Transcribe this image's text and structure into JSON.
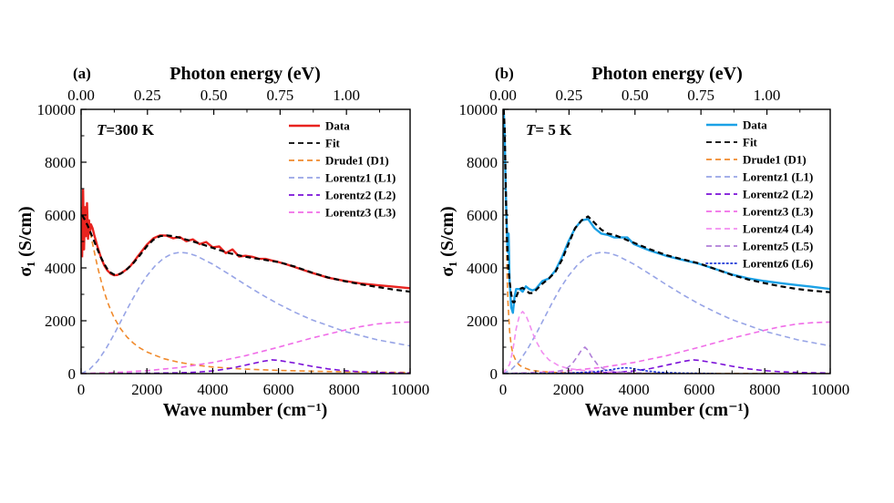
{
  "chart_data": [
    {
      "type": "line",
      "panel_label": "(a)",
      "annotation_italic": "T",
      "annotation_rest": "=300 K",
      "xlabel": "Wave number (cm⁻¹)",
      "top_xlabel": "Photon energy (eV)",
      "ylabel": "σ₁ (S/cm)",
      "xlim": [
        0,
        10000
      ],
      "ylim": [
        0,
        10000
      ],
      "x_ticks": [
        "0",
        "2000",
        "4000",
        "6000",
        "8000",
        "10000"
      ],
      "y_ticks": [
        "0",
        "2000",
        "4000",
        "6000",
        "8000",
        "10000"
      ],
      "top_ticks": [
        {
          "value": 0.0,
          "label": "0.00"
        },
        {
          "value": 0.25,
          "label": "0.25"
        },
        {
          "value": 0.5,
          "label": "0.50"
        },
        {
          "value": 0.75,
          "label": "0.75"
        },
        {
          "value": 1.0,
          "label": "1.00"
        }
      ],
      "legend_position": "top-right",
      "series": [
        {
          "name": "Data",
          "color": "#e8231f",
          "style": "solid",
          "x": [
            30,
            60,
            90,
            120,
            150,
            180,
            210,
            240,
            270,
            300,
            350,
            400,
            500,
            600,
            700,
            800,
            900,
            1000,
            1100,
            1200,
            1300,
            1400,
            1500,
            1600,
            1700,
            1800,
            2000,
            2200,
            2400,
            2600,
            2800,
            3000,
            3200,
            3400,
            3600,
            3800,
            4000,
            4200,
            4400,
            4600,
            4800,
            5000,
            5200,
            5400,
            5600,
            5800,
            6000,
            6200,
            6500,
            7000,
            7500,
            8000,
            8500,
            9000,
            9500,
            10000
          ],
          "y": [
            4400,
            6950,
            4700,
            6300,
            5200,
            6450,
            5100,
            5800,
            5300,
            5650,
            5500,
            5250,
            4800,
            4400,
            4100,
            3900,
            3780,
            3720,
            3730,
            3790,
            3870,
            3960,
            4080,
            4230,
            4400,
            4560,
            4880,
            5120,
            5230,
            5220,
            5120,
            5170,
            5010,
            5080,
            4900,
            4980,
            4780,
            4810,
            4560,
            4700,
            4430,
            4460,
            4420,
            4350,
            4340,
            4280,
            4220,
            4150,
            4030,
            3820,
            3630,
            3510,
            3410,
            3350,
            3290,
            3230
          ]
        },
        {
          "name": "Fit",
          "color": "#000000",
          "style": "dash",
          "x": [
            30,
            100,
            200,
            300,
            400,
            500,
            600,
            700,
            800,
            900,
            1000,
            1100,
            1200,
            1300,
            1400,
            1600,
            1800,
            2000,
            2200,
            2400,
            2600,
            2800,
            3000,
            3200,
            3400,
            3600,
            3800,
            4000,
            4500,
            5000,
            5500,
            6000,
            6500,
            7000,
            7500,
            8000,
            8500,
            9000,
            9500,
            10000
          ],
          "y": [
            6000,
            5850,
            5600,
            5300,
            5000,
            4700,
            4400,
            4150,
            3950,
            3820,
            3750,
            3740,
            3780,
            3860,
            3960,
            4200,
            4500,
            4820,
            5070,
            5200,
            5230,
            5200,
            5140,
            5070,
            5000,
            4920,
            4840,
            4760,
            4560,
            4420,
            4320,
            4220,
            4050,
            3830,
            3640,
            3500,
            3380,
            3280,
            3180,
            3100
          ]
        },
        {
          "name": "Drude1 (D1)",
          "color": "#f08a2c",
          "style": "dash",
          "x": [
            0,
            100,
            200,
            300,
            400,
            500,
            600,
            700,
            800,
            900,
            1000,
            1200,
            1400,
            1600,
            1800,
            2000,
            2500,
            3000,
            3500,
            4000,
            5000,
            6000,
            7000,
            8000,
            9000,
            10000
          ],
          "y": [
            6300,
            6150,
            5750,
            5200,
            4620,
            4050,
            3540,
            3100,
            2720,
            2400,
            2120,
            1700,
            1380,
            1140,
            960,
            820,
            570,
            420,
            320,
            250,
            170,
            120,
            90,
            70,
            55,
            45
          ]
        },
        {
          "name": "Lorentz1 (L1)",
          "color": "#97a4e6",
          "style": "dash",
          "x": [
            0,
            250,
            500,
            750,
            1000,
            1250,
            1500,
            1750,
            2000,
            2250,
            2500,
            2750,
            3000,
            3250,
            3500,
            4000,
            4500,
            5000,
            5500,
            6000,
            6500,
            7000,
            8000,
            9000,
            10000
          ],
          "y": [
            0,
            150,
            470,
            930,
            1480,
            2080,
            2680,
            3230,
            3700,
            4080,
            4360,
            4530,
            4590,
            4560,
            4460,
            4140,
            3760,
            3360,
            2980,
            2630,
            2320,
            2040,
            1600,
            1280,
            1050
          ]
        },
        {
          "name": "Lorentz2 (L2)",
          "color": "#7b10d8",
          "style": "dash",
          "x": [
            0,
            1000,
            2000,
            3000,
            3500,
            4000,
            4500,
            5000,
            5500,
            5800,
            6000,
            6500,
            7000,
            7500,
            8000,
            8500,
            9000,
            9500,
            10000
          ],
          "y": [
            0,
            5,
            15,
            30,
            55,
            100,
            190,
            320,
            460,
            520,
            500,
            400,
            280,
            180,
            110,
            70,
            45,
            30,
            20
          ]
        },
        {
          "name": "Lorentz3 (L3)",
          "color": "#f06de8",
          "style": "dash",
          "x": [
            0,
            1000,
            2000,
            3000,
            4000,
            5000,
            6000,
            7000,
            8000,
            8500,
            9000,
            9500,
            10000
          ],
          "y": [
            0,
            40,
            110,
            230,
            420,
            680,
            1000,
            1340,
            1640,
            1780,
            1880,
            1930,
            1950
          ]
        }
      ]
    },
    {
      "type": "line",
      "panel_label": "(b)",
      "annotation_italic": "T",
      "annotation_rest": "=  5 K",
      "xlabel": "Wave number (cm⁻¹)",
      "top_xlabel": "Photon energy (eV)",
      "ylabel": "σ₁ (S/cm)",
      "xlim": [
        0,
        10000
      ],
      "ylim": [
        0,
        10000
      ],
      "x_ticks": [
        "0",
        "2000",
        "4000",
        "6000",
        "8000",
        "10000"
      ],
      "y_ticks": [
        "0",
        "2000",
        "4000",
        "6000",
        "8000",
        "10000"
      ],
      "top_ticks": [
        {
          "value": 0.0,
          "label": "0.00"
        },
        {
          "value": 0.25,
          "label": "0.25"
        },
        {
          "value": 0.5,
          "label": "0.50"
        },
        {
          "value": 0.75,
          "label": "0.75"
        },
        {
          "value": 1.0,
          "label": "1.00"
        }
      ],
      "legend_position": "top-right",
      "series": [
        {
          "name": "Data",
          "color": "#1ba1e6",
          "style": "solid",
          "x": [
            20,
            50,
            80,
            110,
            140,
            170,
            200,
            250,
            300,
            350,
            400,
            500,
            600,
            700,
            800,
            900,
            1000,
            1200,
            1400,
            1600,
            1800,
            2000,
            2200,
            2400,
            2600,
            2800,
            3000,
            3200,
            3400,
            3600,
            3800,
            4000,
            4500,
            5000,
            5500,
            6000,
            6500,
            7000,
            7500,
            8000,
            8500,
            9000,
            9500,
            10000
          ],
          "y": [
            10000,
            9000,
            7000,
            5800,
            4600,
            5300,
            3500,
            2500,
            2300,
            2900,
            3200,
            3200,
            3100,
            3300,
            3200,
            3150,
            3200,
            3500,
            3600,
            3900,
            4400,
            5000,
            5500,
            5800,
            5850,
            5500,
            5300,
            5250,
            5150,
            5150,
            5150,
            4900,
            4650,
            4450,
            4300,
            4150,
            3950,
            3750,
            3600,
            3500,
            3420,
            3350,
            3280,
            3200
          ]
        },
        {
          "name": "Fit",
          "color": "#000000",
          "style": "dash",
          "x": [
            20,
            50,
            80,
            110,
            140,
            170,
            200,
            250,
            300,
            350,
            400,
            500,
            600,
            700,
            800,
            900,
            1000,
            1200,
            1400,
            1600,
            1800,
            2000,
            2200,
            2400,
            2600,
            2800,
            3000,
            3200,
            3400,
            3600,
            3800,
            4000,
            4500,
            5000,
            5500,
            6000,
            6500,
            7000,
            7500,
            8000,
            8500,
            9000,
            9500,
            10000
          ],
          "y": [
            10000,
            9300,
            7300,
            5600,
            4500,
            3900,
            3500,
            3000,
            2700,
            2700,
            2900,
            3200,
            3250,
            3150,
            3050,
            3050,
            3150,
            3400,
            3600,
            3850,
            4300,
            4900,
            5500,
            5800,
            5950,
            5700,
            5450,
            5300,
            5250,
            5150,
            5050,
            4950,
            4700,
            4480,
            4320,
            4170,
            3950,
            3730,
            3560,
            3420,
            3300,
            3200,
            3130,
            3080
          ]
        },
        {
          "name": "Drude1 (D1)",
          "color": "#f08a2c",
          "style": "dash",
          "x": [
            0,
            25,
            50,
            75,
            100,
            125,
            150,
            200,
            250,
            300,
            400,
            500,
            600,
            800,
            1000,
            1500,
            2000,
            3000,
            5000,
            10000
          ],
          "y": [
            10000,
            9700,
            8600,
            6800,
            5000,
            3700,
            2700,
            1600,
            1050,
            750,
            460,
            320,
            240,
            150,
            100,
            50,
            30,
            15,
            5,
            0
          ]
        },
        {
          "name": "Lorentz1 (L1)",
          "color": "#97a4e6",
          "style": "dash",
          "x": [
            0,
            250,
            500,
            750,
            1000,
            1250,
            1500,
            1750,
            2000,
            2250,
            2500,
            2750,
            3000,
            3250,
            3500,
            4000,
            4500,
            5000,
            5500,
            6000,
            6500,
            7000,
            8000,
            9000,
            10000
          ],
          "y": [
            0,
            150,
            470,
            930,
            1480,
            2080,
            2680,
            3230,
            3700,
            4080,
            4360,
            4530,
            4590,
            4560,
            4460,
            4140,
            3760,
            3360,
            2980,
            2630,
            2320,
            2040,
            1600,
            1280,
            1050
          ]
        },
        {
          "name": "Lorentz2 (L2)",
          "color": "#7b10d8",
          "style": "dash",
          "x": [
            0,
            1000,
            2000,
            3000,
            3500,
            4000,
            4500,
            5000,
            5500,
            5800,
            6000,
            6500,
            7000,
            7500,
            8000,
            8500,
            9000,
            9500,
            10000
          ],
          "y": [
            0,
            5,
            15,
            30,
            55,
            100,
            190,
            320,
            460,
            520,
            500,
            400,
            280,
            180,
            110,
            70,
            45,
            30,
            20
          ]
        },
        {
          "name": "Lorentz3 (L3)",
          "color": "#f06de8",
          "style": "dash",
          "x": [
            0,
            1000,
            2000,
            3000,
            4000,
            5000,
            6000,
            7000,
            8000,
            8500,
            9000,
            9500,
            10000
          ],
          "y": [
            0,
            40,
            110,
            230,
            420,
            680,
            1000,
            1340,
            1640,
            1780,
            1880,
            1930,
            1950
          ]
        },
        {
          "name": "Lorentz4 (L4)",
          "color": "#f28ef0",
          "style": "dash",
          "x": [
            0,
            200,
            300,
            400,
            500,
            600,
            700,
            800,
            900,
            1000,
            1200,
            1400,
            1700,
            2000,
            2500,
            3000,
            4000
          ],
          "y": [
            0,
            350,
            900,
            1700,
            2200,
            2350,
            2200,
            1900,
            1550,
            1250,
            800,
            520,
            300,
            190,
            110,
            70,
            30
          ]
        },
        {
          "name": "Lorentz5 (L5)",
          "color": "#b07ed8",
          "style": "dash",
          "x": [
            0,
            1500,
            1900,
            2100,
            2300,
            2400,
            2500,
            2600,
            2700,
            2900,
            3100,
            3500,
            4000,
            5000
          ],
          "y": [
            0,
            40,
            150,
            350,
            700,
            900,
            1000,
            880,
            650,
            320,
            160,
            70,
            30,
            10
          ]
        },
        {
          "name": "Lorentz6 (L6)",
          "color": "#1b35d6",
          "style": "dot",
          "x": [
            0,
            2000,
            2800,
            3200,
            3500,
            3700,
            3900,
            4100,
            4400,
            4800,
            5500,
            6500
          ],
          "y": [
            0,
            20,
            70,
            130,
            190,
            220,
            210,
            160,
            100,
            50,
            20,
            5
          ]
        }
      ]
    }
  ]
}
